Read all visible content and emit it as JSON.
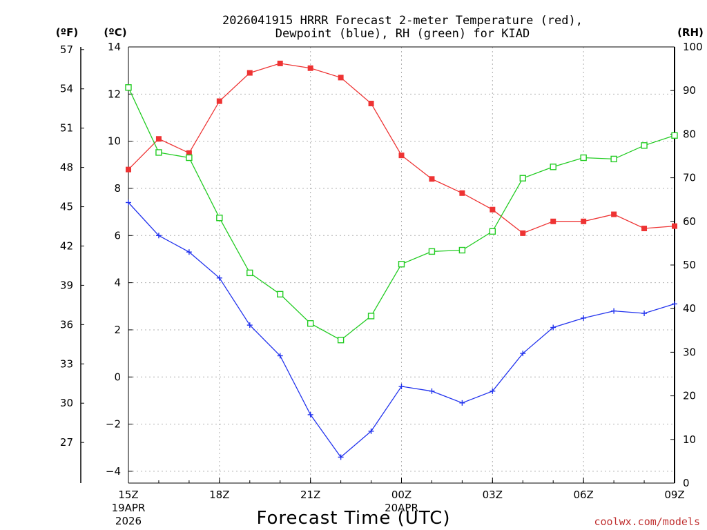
{
  "chart_data": {
    "type": "line",
    "title_line1": "2026041915 HRRR Forecast 2-meter Temperature (red),",
    "title_line2": "Dewpoint (blue), RH (green) for KIAD",
    "xlabel": "Forecast Time (UTC)",
    "credit": "coolwx.com/models",
    "units": {
      "fahrenheit": "(ºF)",
      "celsius": "(ºC)",
      "rh": "(RH)"
    },
    "hours": [
      15,
      16,
      17,
      18,
      19,
      20,
      21,
      22,
      23,
      24,
      25,
      26,
      27,
      28,
      29,
      30,
      31,
      32,
      33
    ],
    "x_ticks": [
      {
        "hour": 15,
        "label": "15Z",
        "date": "19APR",
        "year": "2026"
      },
      {
        "hour": 18,
        "label": "18Z"
      },
      {
        "hour": 21,
        "label": "21Z"
      },
      {
        "hour": 24,
        "label": "00Z",
        "date": "20APR"
      },
      {
        "hour": 27,
        "label": "03Z"
      },
      {
        "hour": 30,
        "label": "06Z"
      },
      {
        "hour": 33,
        "label": "09Z"
      }
    ],
    "celsius_axis": {
      "min": -4.5,
      "max": 14,
      "ticks": [
        "−4",
        "−2",
        "0",
        "2",
        "4",
        "6",
        "8",
        "10",
        "12",
        "14"
      ],
      "tick_values": [
        -4,
        -2,
        0,
        2,
        4,
        6,
        8,
        10,
        12,
        14
      ]
    },
    "fahrenheit_axis": {
      "ticks": [
        "27",
        "30",
        "33",
        "36",
        "39",
        "42",
        "45",
        "48",
        "51",
        "54",
        "57"
      ],
      "tick_values": [
        27,
        30,
        33,
        36,
        39,
        42,
        45,
        48,
        51,
        54,
        57
      ]
    },
    "rh_axis": {
      "min": 0,
      "max": 100,
      "ticks": [
        "0",
        "10",
        "20",
        "30",
        "40",
        "50",
        "60",
        "70",
        "80",
        "90",
        "100"
      ],
      "tick_values": [
        0,
        10,
        20,
        30,
        40,
        50,
        60,
        70,
        80,
        90,
        100
      ]
    },
    "series": [
      {
        "name": "Temperature",
        "color": "#ee3333",
        "axis": "celsius",
        "marker": "filled-square",
        "values": [
          8.8,
          10.1,
          9.5,
          11.7,
          12.9,
          13.3,
          13.1,
          12.7,
          11.6,
          9.4,
          8.4,
          7.8,
          7.1,
          6.1,
          6.6,
          6.6,
          6.9,
          6.3,
          6.4
        ]
      },
      {
        "name": "Dewpoint",
        "color": "#2233ee",
        "axis": "celsius",
        "marker": "plus",
        "values": [
          7.4,
          6.0,
          5.3,
          4.2,
          2.2,
          0.9,
          -1.6,
          -3.4,
          -2.3,
          -0.4,
          -0.6,
          -1.1,
          -0.6,
          1.0,
          2.1,
          2.5,
          2.8,
          2.7,
          3.1
        ]
      },
      {
        "name": "RH",
        "color": "#22cc22",
        "axis": "rh",
        "marker": "open-square",
        "values": [
          90.7,
          75.8,
          74.6,
          60.8,
          48.2,
          43.3,
          36.6,
          32.8,
          38.3,
          50.2,
          53.1,
          53.4,
          57.7,
          69.9,
          72.5,
          74.6,
          74.3,
          77.4,
          79.7
        ]
      }
    ]
  }
}
